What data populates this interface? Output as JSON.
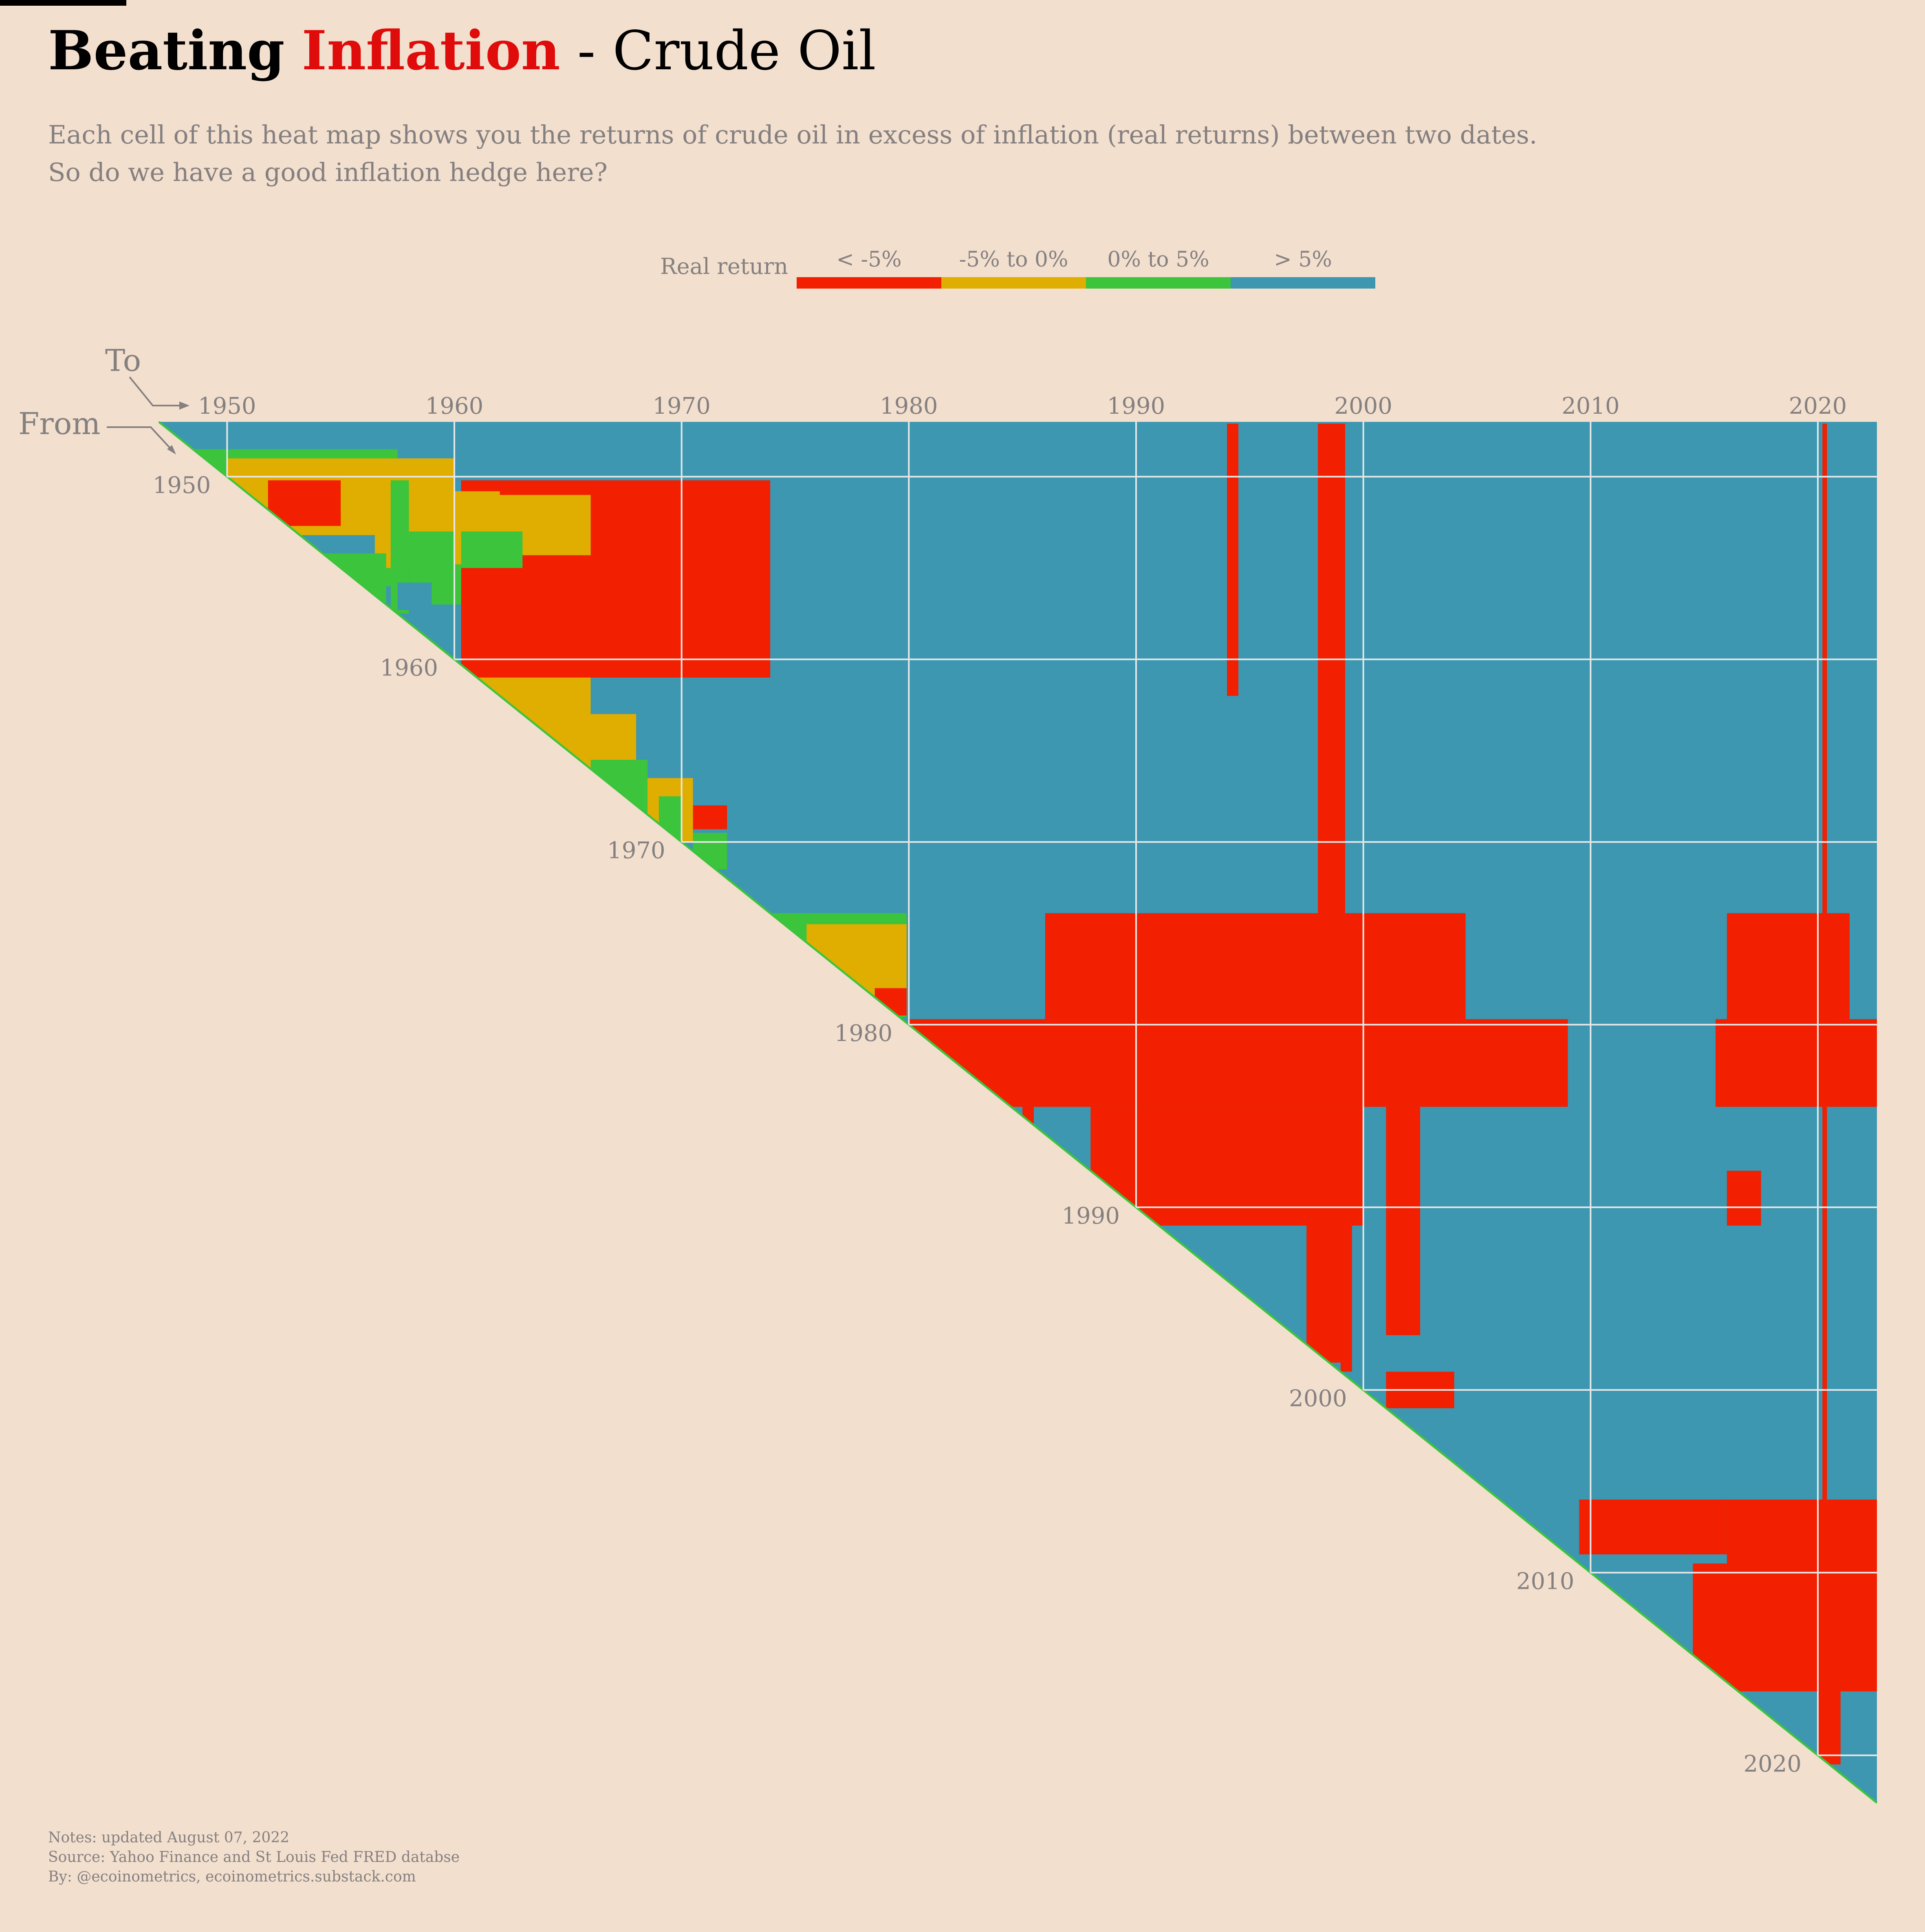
{
  "title": {
    "part1": "Beating",
    "part2": "Inflation",
    "part3": "- Crude Oil"
  },
  "subtitle": {
    "line1": "Each cell of this heat map shows you the returns of crude oil in excess of inflation (real returns) between two dates.",
    "line2": "So do we have a good inflation hedge here?"
  },
  "legend": {
    "title": "Real return",
    "items": [
      {
        "label": "< -5%",
        "color": "#f21f00"
      },
      {
        "label": "-5% to 0%",
        "color": "#e0ae00"
      },
      {
        "label": "0% to 5%",
        "color": "#3cc43c"
      },
      {
        "label": "> 5%",
        "color": "#3d97b1"
      }
    ]
  },
  "footer": {
    "line1": "Notes: updated August 07, 2022",
    "line2": "Source: Yahoo Finance and St Louis Fed FRED databse",
    "line3": "By: @ecoinometrics, ecoinometrics.substack.com"
  },
  "chart_data": {
    "type": "heatmap",
    "to_label": "To",
    "from_label": "From",
    "x_axis_label": "To",
    "y_axis_label": "From",
    "range": [
      1947,
      2022.6
    ],
    "ticks": [
      1950,
      1960,
      1970,
      1980,
      1990,
      2000,
      2010,
      2020
    ],
    "grid": true,
    "legend_position": "top-center",
    "categories": [
      "< -5%",
      "-5% to 0%",
      "0% to 5%",
      "> 5%"
    ],
    "colors": [
      "#f21f00",
      "#e0ae00",
      "#3cc43c",
      "#3d97b1"
    ],
    "default_category": 3,
    "regions": [
      {
        "from": [
          1947.1,
          1950.2
        ],
        "to": [
          1947.1,
          1973.6
        ],
        "cat": 3
      },
      {
        "from": [
          1948.5,
          1956.0
        ],
        "to": [
          1948.5,
          1957.5
        ],
        "cat": 2
      },
      {
        "from": [
          1950.2,
          1951.4
        ],
        "to": [
          1950.3,
          1952.0
        ],
        "cat": 1
      },
      {
        "from": [
          1949.0,
          1955.0
        ],
        "to": [
          1950.0,
          1960.0
        ],
        "cat": 1
      },
      {
        "from": [
          1950.2,
          1952.7
        ],
        "to": [
          1951.8,
          1955.0
        ],
        "cat": 0
      },
      {
        "from": [
          1950.2,
          1952.0
        ],
        "to": [
          1955.0,
          1957.5
        ],
        "cat": 1
      },
      {
        "from": [
          1953.2,
          1955.2
        ],
        "to": [
          1953.3,
          1956.5
        ],
        "cat": 3
      },
      {
        "from": [
          1954.2,
          1957.0
        ],
        "to": [
          1954.2,
          1957.0
        ],
        "cat": 2
      },
      {
        "from": [
          1950.2,
          1957.5
        ],
        "to": [
          1957.2,
          1958.0
        ],
        "cat": 2
      },
      {
        "from": [
          1953.0,
          1957.0
        ],
        "to": [
          1958.0,
          1960.3
        ],
        "cat": 2
      },
      {
        "from": [
          1953.5,
          1956.5
        ],
        "to": [
          1958.0,
          1962.0
        ],
        "cat": 2
      },
      {
        "from": [
          1955.8,
          1957.3
        ],
        "to": [
          1957.5,
          1959.0
        ],
        "cat": 3
      },
      {
        "from": [
          1950.2,
          1961.0
        ],
        "to": [
          1960.3,
          1973.9
        ],
        "cat": 0
      },
      {
        "from": [
          1950.8,
          1954.8
        ],
        "to": [
          1960.0,
          1962.0
        ],
        "cat": 1
      },
      {
        "from": [
          1951.0,
          1954.3
        ],
        "to": [
          1962.0,
          1966.0
        ],
        "cat": 1
      },
      {
        "from": [
          1953.0,
          1955.0
        ],
        "to": [
          1960.3,
          1963.0
        ],
        "cat": 2
      },
      {
        "from": [
          1961.0,
          1966.0
        ],
        "to": [
          1961.0,
          1966.0
        ],
        "cat": 1
      },
      {
        "from": [
          1963.0,
          1970.5
        ],
        "to": [
          1963.0,
          1968.0
        ],
        "cat": 1
      },
      {
        "from": [
          1965.5,
          1970.5
        ],
        "to": [
          1966.0,
          1968.5
        ],
        "cat": 2
      },
      {
        "from": [
          1966.5,
          1970.0
        ],
        "to": [
          1968.5,
          1970.5
        ],
        "cat": 1
      },
      {
        "from": [
          1967.5,
          1970.5
        ],
        "to": [
          1969.0,
          1970.0
        ],
        "cat": 2
      },
      {
        "from": [
          1968.0,
          1969.3
        ],
        "to": [
          1970.5,
          1972.0
        ],
        "cat": 0
      },
      {
        "from": [
          1969.5,
          1971.5
        ],
        "to": [
          1970.5,
          1972.0
        ],
        "cat": 2
      },
      {
        "from": [
          1973.9,
          1979.6
        ],
        "to": [
          1974.0,
          1979.9
        ],
        "cat": 2
      },
      {
        "from": [
          1974.5,
          1979.3
        ],
        "to": [
          1975.5,
          1979.9
        ],
        "cat": 1
      },
      {
        "from": [
          1978.0,
          1979.5
        ],
        "to": [
          1978.5,
          1979.9
        ],
        "cat": 0
      },
      {
        "from": [
          1973.9,
          1979.7
        ],
        "to": [
          1986.0,
          2004.5
        ],
        "cat": 0
      },
      {
        "from": [
          1973.9,
          1979.7
        ],
        "to": [
          2016.0,
          2021.4
        ],
        "cat": 0
      },
      {
        "from": [
          1979.7,
          1984.5
        ],
        "to": [
          1980.0,
          2004.5
        ],
        "cat": 0
      },
      {
        "from": [
          1979.7,
          1984.5
        ],
        "to": [
          2004.5,
          2022.6
        ],
        "cat": 0
      },
      {
        "from": [
          1979.7,
          1984.5
        ],
        "to": [
          2009.0,
          2015.5
        ],
        "cat": 3
      },
      {
        "from": [
          1984.5,
          1991.0
        ],
        "to": [
          1985.0,
          2000.0
        ],
        "cat": 0
      },
      {
        "from": [
          1984.5,
          1988.0
        ],
        "to": [
          1985.5,
          1988.0
        ],
        "cat": 3
      },
      {
        "from": [
          1988.0,
          1998.5
        ],
        "to": [
          1997.5,
          1999.2
        ],
        "cat": 0
      },
      {
        "from": [
          1947.1,
          1974.0
        ],
        "to": [
          1998.0,
          1999.2
        ],
        "cat": 0
      },
      {
        "from": [
          1947.1,
          1962.0
        ],
        "to": [
          1994.0,
          1994.5
        ],
        "cat": 0
      },
      {
        "from": [
          1989.5,
          1999.0
        ],
        "to": [
          1999.0,
          1999.5
        ],
        "cat": 0
      },
      {
        "from": [
          1999.0,
          2001.0
        ],
        "to": [
          2001.0,
          2004.0
        ],
        "cat": 0
      },
      {
        "from": [
          2006.0,
          2009.5
        ],
        "to": [
          2016.0,
          2022.6
        ],
        "cat": 0
      },
      {
        "from": [
          2006.0,
          2009.0
        ],
        "to": [
          2009.5,
          2016.0
        ],
        "cat": 0
      },
      {
        "from": [
          2009.5,
          2016.5
        ],
        "to": [
          2014.5,
          2022.6
        ],
        "cat": 0
      },
      {
        "from": [
          2016.5,
          2020.5
        ],
        "to": [
          2020.0,
          2021.0
        ],
        "cat": 0
      },
      {
        "from": [
          1947.1,
          2022.6
        ],
        "to": [
          2020.2,
          2020.4
        ],
        "cat": 0
      },
      {
        "from": [
          1984.5,
          1997.0
        ],
        "to": [
          2001.0,
          2002.5
        ],
        "cat": 0
      },
      {
        "from": [
          1988.0,
          1991.0
        ],
        "to": [
          2016.0,
          2017.5
        ],
        "cat": 0
      }
    ]
  }
}
